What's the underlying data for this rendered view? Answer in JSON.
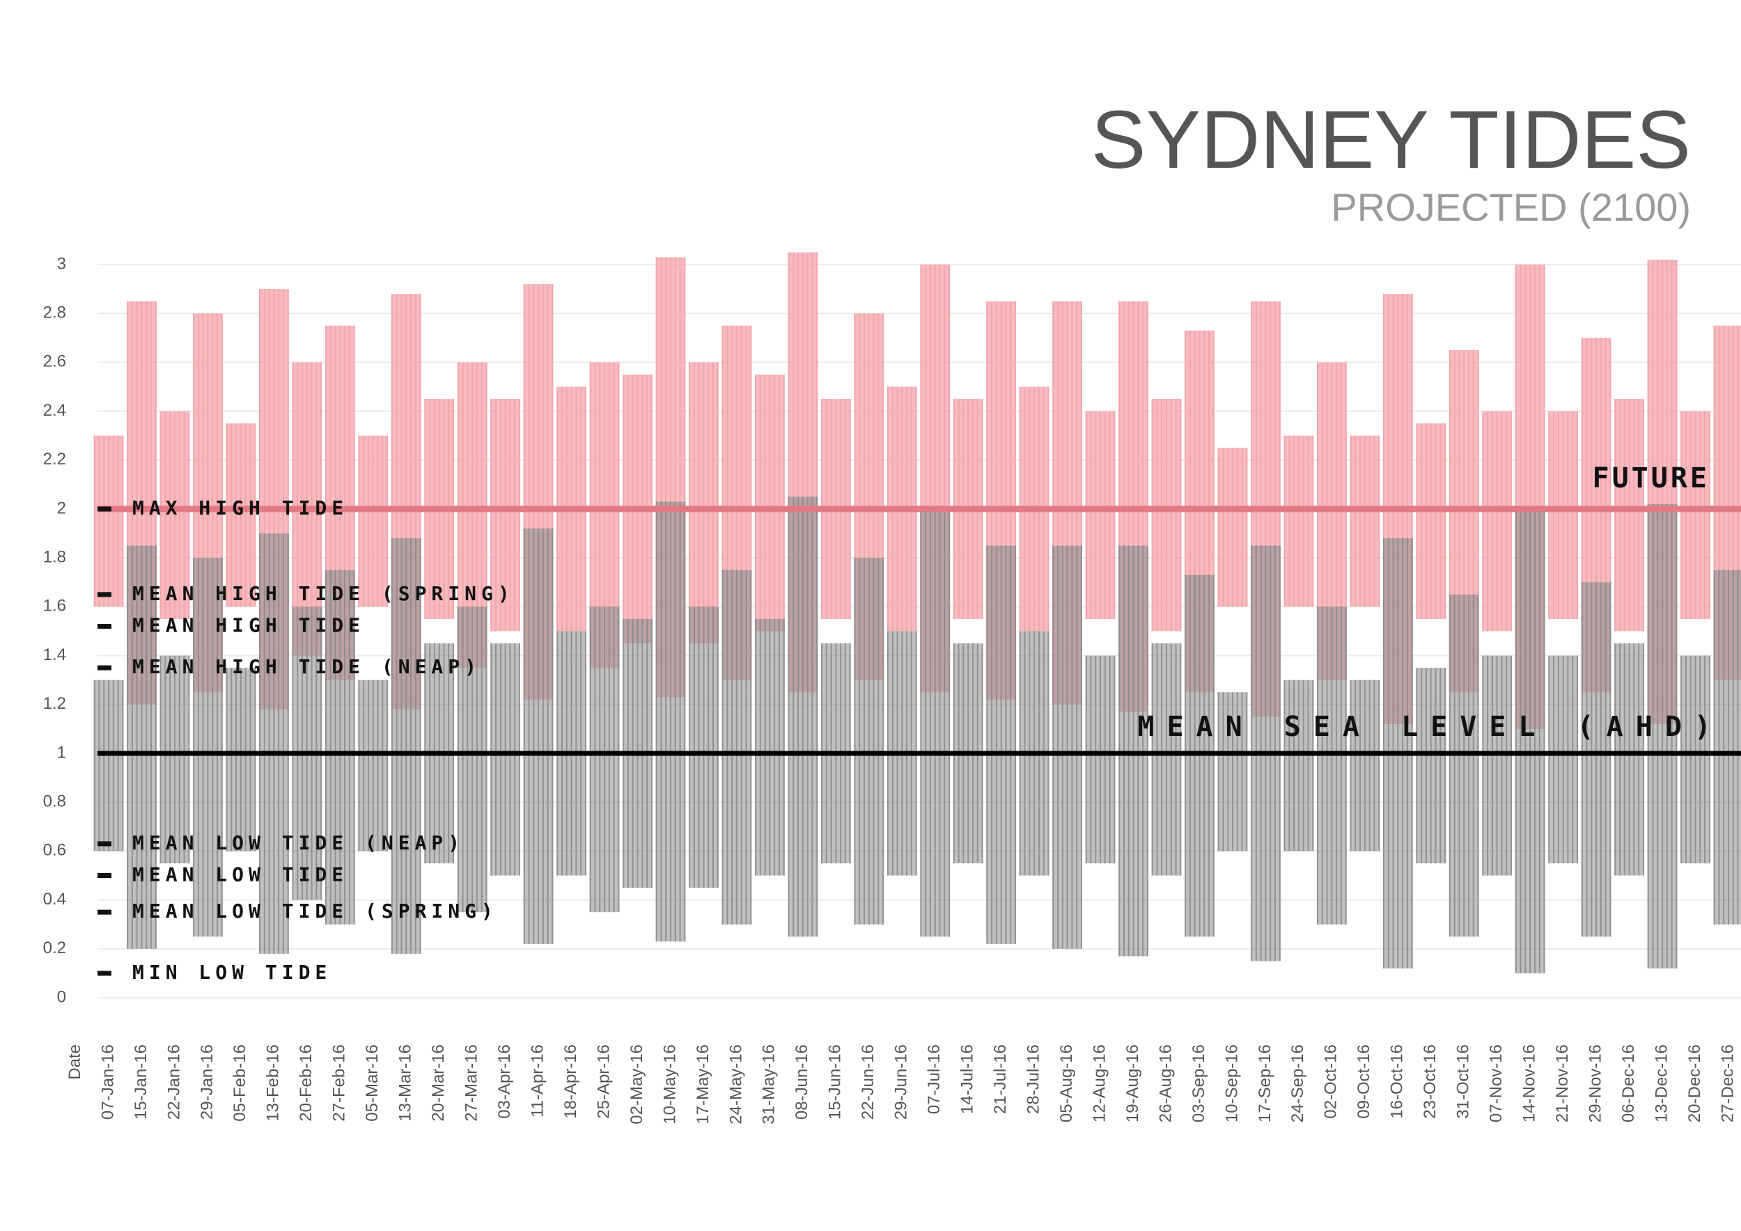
{
  "chart_data": {
    "type": "range",
    "title": "SYDNEY TIDES",
    "subtitle": "PROJECTED (2100)",
    "x_label": "Date",
    "categories": [
      "07-Jan-16",
      "15-Jan-16",
      "22-Jan-16",
      "29-Jan-16",
      "05-Feb-16",
      "13-Feb-16",
      "20-Feb-16",
      "27-Feb-16",
      "05-Mar-16",
      "13-Mar-16",
      "20-Mar-16",
      "27-Mar-16",
      "03-Apr-16",
      "11-Apr-16",
      "18-Apr-16",
      "25-Apr-16",
      "02-May-16",
      "10-May-16",
      "17-May-16",
      "24-May-16",
      "31-May-16",
      "08-Jun-16",
      "15-Jun-16",
      "22-Jun-16",
      "29-Jun-16",
      "07-Jul-16",
      "14-Jul-16",
      "21-Jul-16",
      "28-Jul-16",
      "05-Aug-16",
      "12-Aug-16",
      "19-Aug-16",
      "26-Aug-16",
      "03-Sep-16",
      "10-Sep-16",
      "17-Sep-16",
      "24-Sep-16",
      "02-Oct-16",
      "09-Oct-16",
      "16-Oct-16",
      "23-Oct-16",
      "31-Oct-16",
      "07-Nov-16",
      "14-Nov-16",
      "21-Nov-16",
      "29-Nov-16",
      "06-Dec-16",
      "13-Dec-16",
      "20-Dec-16",
      "27-Dec-16"
    ],
    "series": [
      {
        "color": "#f4a3aa",
        "high": [
          2.3,
          2.85,
          2.4,
          2.8,
          2.35,
          2.9,
          2.6,
          2.75,
          2.3,
          2.88,
          2.45,
          2.6,
          2.45,
          2.92,
          2.5,
          2.6,
          2.55,
          3.03,
          2.6,
          2.75,
          2.55,
          3.05,
          2.45,
          2.8,
          2.5,
          3.0,
          2.45,
          2.85,
          2.5,
          2.85,
          2.4,
          2.85,
          2.45,
          2.73,
          2.25,
          2.85,
          2.3,
          2.6,
          2.3,
          2.88,
          2.35,
          2.65,
          2.4,
          3.0,
          2.4,
          2.7,
          2.45,
          3.02,
          2.4,
          2.75
        ],
        "low": [
          1.6,
          1.2,
          1.55,
          1.25,
          1.6,
          1.18,
          1.4,
          1.3,
          1.6,
          1.18,
          1.55,
          1.35,
          1.5,
          1.22,
          1.5,
          1.35,
          1.45,
          1.23,
          1.45,
          1.3,
          1.5,
          1.25,
          1.55,
          1.3,
          1.5,
          1.25,
          1.55,
          1.22,
          1.5,
          1.2,
          1.55,
          1.17,
          1.5,
          1.25,
          1.6,
          1.15,
          1.6,
          1.3,
          1.6,
          1.12,
          1.55,
          1.25,
          1.5,
          1.1,
          1.55,
          1.25,
          1.5,
          1.12,
          1.55,
          1.3
        ]
      },
      {
        "color": "#8c8c8c",
        "high": [
          1.3,
          1.85,
          1.4,
          1.8,
          1.35,
          1.9,
          1.6,
          1.75,
          1.3,
          1.88,
          1.45,
          1.6,
          1.45,
          1.92,
          1.5,
          1.6,
          1.55,
          2.03,
          1.6,
          1.75,
          1.55,
          2.05,
          1.45,
          1.8,
          1.5,
          2.0,
          1.45,
          1.85,
          1.5,
          1.85,
          1.4,
          1.85,
          1.45,
          1.73,
          1.25,
          1.85,
          1.3,
          1.6,
          1.3,
          1.88,
          1.35,
          1.65,
          1.4,
          2.0,
          1.4,
          1.7,
          1.45,
          2.02,
          1.4,
          1.75
        ],
        "low": [
          0.6,
          0.2,
          0.55,
          0.25,
          0.6,
          0.18,
          0.4,
          0.3,
          0.6,
          0.18,
          0.55,
          0.35,
          0.5,
          0.22,
          0.5,
          0.35,
          0.45,
          0.23,
          0.45,
          0.3,
          0.5,
          0.25,
          0.55,
          0.3,
          0.5,
          0.25,
          0.55,
          0.22,
          0.5,
          0.2,
          0.55,
          0.17,
          0.5,
          0.25,
          0.6,
          0.15,
          0.6,
          0.3,
          0.6,
          0.12,
          0.55,
          0.25,
          0.5,
          0.1,
          0.55,
          0.25,
          0.5,
          0.12,
          0.55,
          0.3
        ]
      }
    ],
    "ylim": [
      0,
      3.1
    ],
    "yticks": [
      0,
      0.2,
      0.4,
      0.6,
      0.8,
      1,
      1.2,
      1.4,
      1.6,
      1.8,
      2,
      2.2,
      2.4,
      2.6,
      2.8,
      3
    ],
    "grid": true,
    "reference_lines": [
      {
        "label": "FUTURE",
        "value": 2,
        "color": "#e27a84"
      },
      {
        "label": "MEAN SEA LEVEL (AHD)",
        "value": 1,
        "color": "#000000"
      }
    ],
    "annotations": [
      {
        "text": "MAX HIGH TIDE",
        "value": 2
      },
      {
        "text": "MEAN HIGH TIDE (SPRING)",
        "value": 1.65
      },
      {
        "text": "MEAN HIGH TIDE",
        "value": 1.52
      },
      {
        "text": "MEAN HIGH TIDE (NEAP)",
        "value": 1.35
      },
      {
        "text": "MEAN LOW TIDE (NEAP)",
        "value": 0.63
      },
      {
        "text": "MEAN LOW TIDE",
        "value": 0.5
      },
      {
        "text": "MEAN LOW TIDE (SPRING)",
        "value": 0.35
      },
      {
        "text": "MIN LOW TIDE",
        "value": 0.1
      }
    ]
  }
}
